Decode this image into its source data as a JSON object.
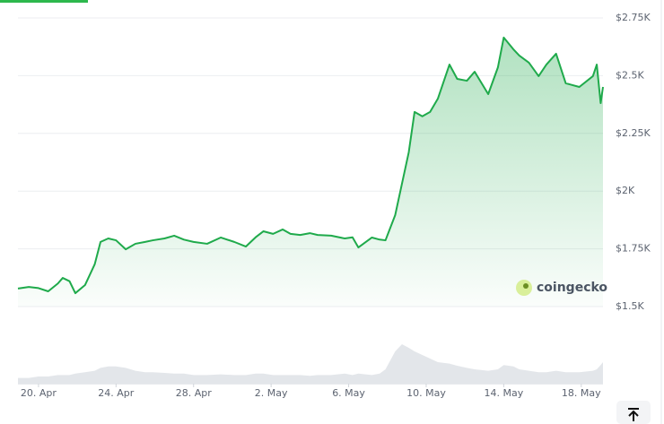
{
  "chart_data": {
    "type": "area",
    "watermark": "coingecko",
    "x": [
      -1.06,
      -0.5,
      0,
      0.5,
      1,
      1.25,
      1.6,
      1.9,
      2.4,
      2.9,
      3.2,
      3.6,
      4,
      4.5,
      5,
      5.5,
      5.9,
      6.5,
      7,
      7.5,
      8,
      8.7,
      9.4,
      10.1,
      10.7,
      11.2,
      11.6,
      12.1,
      12.6,
      13,
      13.5,
      14,
      14.4,
      15.1,
      15.8,
      16.2,
      16.5,
      17.2,
      17.6,
      17.9,
      18.4,
      18.75,
      19.1,
      19.4,
      19.8,
      20.2,
      20.6,
      21.2,
      21.6,
      22.1,
      22.5,
      23.2,
      23.7,
      24,
      24.5,
      24.8,
      25.3,
      25.8,
      26.2,
      26.7,
      27.2,
      27.9,
      28.6,
      28.8,
      29,
      29.12
    ],
    "values": [
      1578,
      1585,
      1580,
      1566,
      1600,
      1624,
      1610,
      1558,
      1593,
      1683,
      1780,
      1795,
      1787,
      1748,
      1772,
      1780,
      1787,
      1795,
      1807,
      1790,
      1780,
      1772,
      1799,
      1780,
      1760,
      1800,
      1826,
      1815,
      1834,
      1815,
      1810,
      1818,
      1810,
      1807,
      1795,
      1800,
      1756,
      1799,
      1790,
      1787,
      1896,
      2032,
      2168,
      2343,
      2324,
      2343,
      2400,
      2548,
      2486,
      2478,
      2517,
      2420,
      2536,
      2665,
      2614,
      2587,
      2556,
      2498,
      2548,
      2595,
      2467,
      2451,
      2498,
      2548,
      2381,
      2451
    ],
    "volume": [
      8,
      8,
      10,
      10,
      12,
      12,
      12,
      14,
      16,
      18,
      22,
      24,
      24,
      22,
      18,
      16,
      16,
      15,
      14,
      14,
      12,
      12,
      13,
      12,
      12,
      14,
      14,
      12,
      12,
      12,
      12,
      11,
      12,
      12,
      14,
      12,
      14,
      12,
      14,
      20,
      45,
      55,
      50,
      45,
      40,
      35,
      30,
      28,
      25,
      22,
      20,
      18,
      20,
      26,
      24,
      20,
      18,
      16,
      16,
      18,
      16,
      16,
      18,
      20,
      26,
      30
    ],
    "volume_lim": [
      0,
      100
    ],
    "color": "#1faa4b",
    "volume_color": "#e3e6ea",
    "xlim": [
      -1.06,
      29.12
    ],
    "xticks": [
      {
        "value": 0,
        "label": "20. Apr"
      },
      {
        "value": 4,
        "label": "24. Apr"
      },
      {
        "value": 8,
        "label": "28. Apr"
      },
      {
        "value": 12,
        "label": "2. May"
      },
      {
        "value": 16,
        "label": "6. May"
      },
      {
        "value": 20,
        "label": "10. May"
      },
      {
        "value": 24,
        "label": "14. May"
      },
      {
        "value": 28,
        "label": "18. May"
      }
    ],
    "ylim": [
      1500,
      2750
    ],
    "yticks": [
      {
        "value": 1500,
        "label": "$1.5K"
      },
      {
        "value": 1750,
        "label": "$1.75K"
      },
      {
        "value": 2000,
        "label": "$2K"
      },
      {
        "value": 2250,
        "label": "$2.25K"
      },
      {
        "value": 2500,
        "label": "$2.5K"
      },
      {
        "value": 2750,
        "label": "$2.75K"
      }
    ],
    "grid": true
  }
}
